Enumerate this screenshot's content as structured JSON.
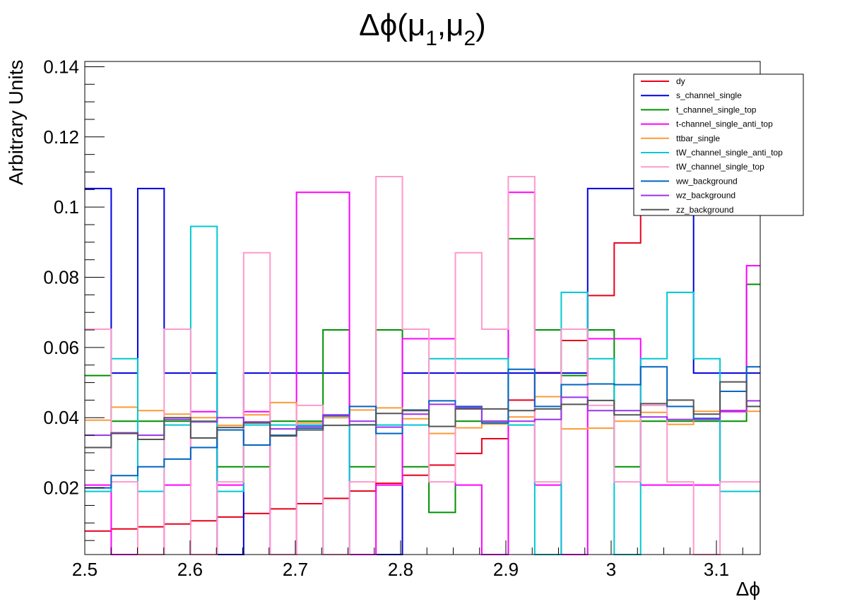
{
  "chart_data": {
    "type": "line",
    "title_main": "Δϕ(μ",
    "title_sub1": "1",
    "title_mid": ",μ",
    "title_sub2": "2",
    "title_end": ")",
    "xlabel": "Δϕ",
    "ylabel": "Arbitrary Units",
    "xlim": [
      2.5,
      3.1416
    ],
    "ylim": [
      0.001,
      0.1415
    ],
    "x_ticks": [
      2.5,
      2.6,
      2.7,
      2.8,
      2.9,
      3.0,
      3.1
    ],
    "x_tick_labels": [
      "2.5",
      "2.6",
      "2.7",
      "2.8",
      "2.9",
      "3",
      "3.1"
    ],
    "y_ticks": [
      0.02,
      0.04,
      0.06,
      0.08,
      0.1,
      0.12,
      0.14
    ],
    "y_tick_labels": [
      "0.02",
      "0.04",
      "0.06",
      "0.08",
      "0.1",
      "0.12",
      "0.14"
    ],
    "bin_edges": [
      2.5,
      2.5251,
      2.5503,
      2.5754,
      2.6006,
      2.6257,
      2.6509,
      2.676,
      2.7011,
      2.7263,
      2.7514,
      2.7766,
      2.8017,
      2.8269,
      2.852,
      2.8771,
      2.9023,
      2.9274,
      2.9526,
      2.9777,
      3.0029,
      3.028,
      3.0531,
      3.0783,
      3.1034,
      3.1286,
      3.1416
    ],
    "legend_position": "top-right",
    "series": [
      {
        "name": "dy",
        "color": "#e8001c",
        "values": [
          0.0077,
          0.0083,
          0.0089,
          0.0097,
          0.0106,
          0.0117,
          0.0127,
          0.014,
          0.0155,
          0.017,
          0.0191,
          0.0213,
          0.0236,
          0.0265,
          0.0298,
          0.034,
          0.045,
          0.0528,
          0.062,
          0.0748,
          0.0898,
          0.1005,
          0.1042,
          0.1042,
          0.1042,
          0.1042
        ]
      },
      {
        "name": "s_channel_single",
        "color": "#0000e0",
        "values": [
          0.1053,
          0.0527,
          0.1053,
          0.0527,
          0.0527,
          0.0,
          0.0527,
          0.0527,
          0.0527,
          0.0527,
          0.0,
          0.0,
          0.0527,
          0.0527,
          0.0527,
          0.0527,
          0.0527,
          0.0527,
          0.0527,
          0.1053,
          0.1053,
          0.1053,
          0.1053,
          0.0527,
          0.0527,
          0.0527
        ]
      },
      {
        "name": "t_channel_single_top",
        "color": "#009000",
        "values": [
          0.052,
          0.039,
          0.039,
          0.039,
          0.039,
          0.026,
          0.026,
          0.039,
          0.039,
          0.065,
          0.026,
          0.065,
          0.026,
          0.013,
          0.039,
          0.039,
          0.091,
          0.065,
          0.052,
          0.065,
          0.026,
          0.039,
          0.039,
          0.039,
          0.039,
          0.078
        ]
      },
      {
        "name": "t-channel_single_anti_top",
        "color": "#ff00ff",
        "values": [
          0.0208,
          0.0,
          0.0,
          0.0208,
          0.0417,
          0.0208,
          0.0417,
          0.0,
          0.1042,
          0.1042,
          0.0,
          0.0208,
          0.0625,
          0.0625,
          0.0208,
          0.0,
          0.1042,
          0.0208,
          0.0,
          0.0625,
          0.0625,
          0.0208,
          0.0208,
          0.0208,
          0.0417,
          0.0833
        ]
      },
      {
        "name": "ttbar_single",
        "color": "#ff9933",
        "values": [
          0.0393,
          0.043,
          0.042,
          0.041,
          0.04,
          0.0378,
          0.0408,
          0.0443,
          0.0385,
          0.04,
          0.0422,
          0.0428,
          0.0397,
          0.0355,
          0.0371,
          0.0382,
          0.0402,
          0.046,
          0.0368,
          0.037,
          0.039,
          0.0415,
          0.0381,
          0.0418,
          0.042,
          0.0418
        ]
      },
      {
        "name": "tW_channel_single_anti_top",
        "color": "#00c8d2",
        "values": [
          0.019,
          0.0568,
          0.019,
          0.0379,
          0.0945,
          0.019,
          0.0379,
          0.0379,
          0.0379,
          0.0,
          0.0379,
          0.0379,
          0.0379,
          0.0568,
          0.0568,
          0.0568,
          0.0379,
          0.0,
          0.0757,
          0.0568,
          0.0,
          0.0568,
          0.0757,
          0.0568,
          0.019,
          0.019
        ]
      },
      {
        "name": "tW_channel_single_top",
        "color": "#ff99cc",
        "values": [
          0.0652,
          0.0217,
          0.0,
          0.0652,
          0.0,
          0.0217,
          0.087,
          0.0,
          0.0435,
          0.0,
          0.0217,
          0.1087,
          0.0652,
          0.0217,
          0.087,
          0.0652,
          0.1087,
          0.0217,
          0.0652,
          0.0435,
          0.0217,
          0.0435,
          0.0217,
          0.0,
          0.0217,
          0.0217
        ]
      },
      {
        "name": "ww_background",
        "color": "#0066c0",
        "values": [
          0.02,
          0.0235,
          0.026,
          0.0282,
          0.0315,
          0.0365,
          0.0322,
          0.035,
          0.037,
          0.0405,
          0.0432,
          0.0355,
          0.0422,
          0.0448,
          0.0432,
          0.0385,
          0.0538,
          0.0432,
          0.0494,
          0.0496,
          0.0494,
          0.0545,
          0.0432,
          0.0398,
          0.0475,
          0.0545
        ]
      },
      {
        "name": "wz_background",
        "color": "#9933ee",
        "values": [
          0.035,
          0.0357,
          0.035,
          0.0395,
          0.0388,
          0.04,
          0.0388,
          0.0368,
          0.0375,
          0.0408,
          0.039,
          0.0373,
          0.041,
          0.0438,
          0.0428,
          0.039,
          0.039,
          0.0395,
          0.0458,
          0.042,
          0.042,
          0.0402,
          0.0395,
          0.0395,
          0.042,
          0.0448
        ]
      },
      {
        "name": "zz_background",
        "color": "#555555",
        "values": [
          0.0315,
          0.0355,
          0.0338,
          0.04,
          0.0342,
          0.0372,
          0.0385,
          0.0348,
          0.0365,
          0.0378,
          0.038,
          0.0412,
          0.042,
          0.0375,
          0.0425,
          0.0425,
          0.042,
          0.0425,
          0.0438,
          0.0449,
          0.0408,
          0.044,
          0.045,
          0.041,
          0.0502,
          0.0432
        ]
      }
    ]
  }
}
